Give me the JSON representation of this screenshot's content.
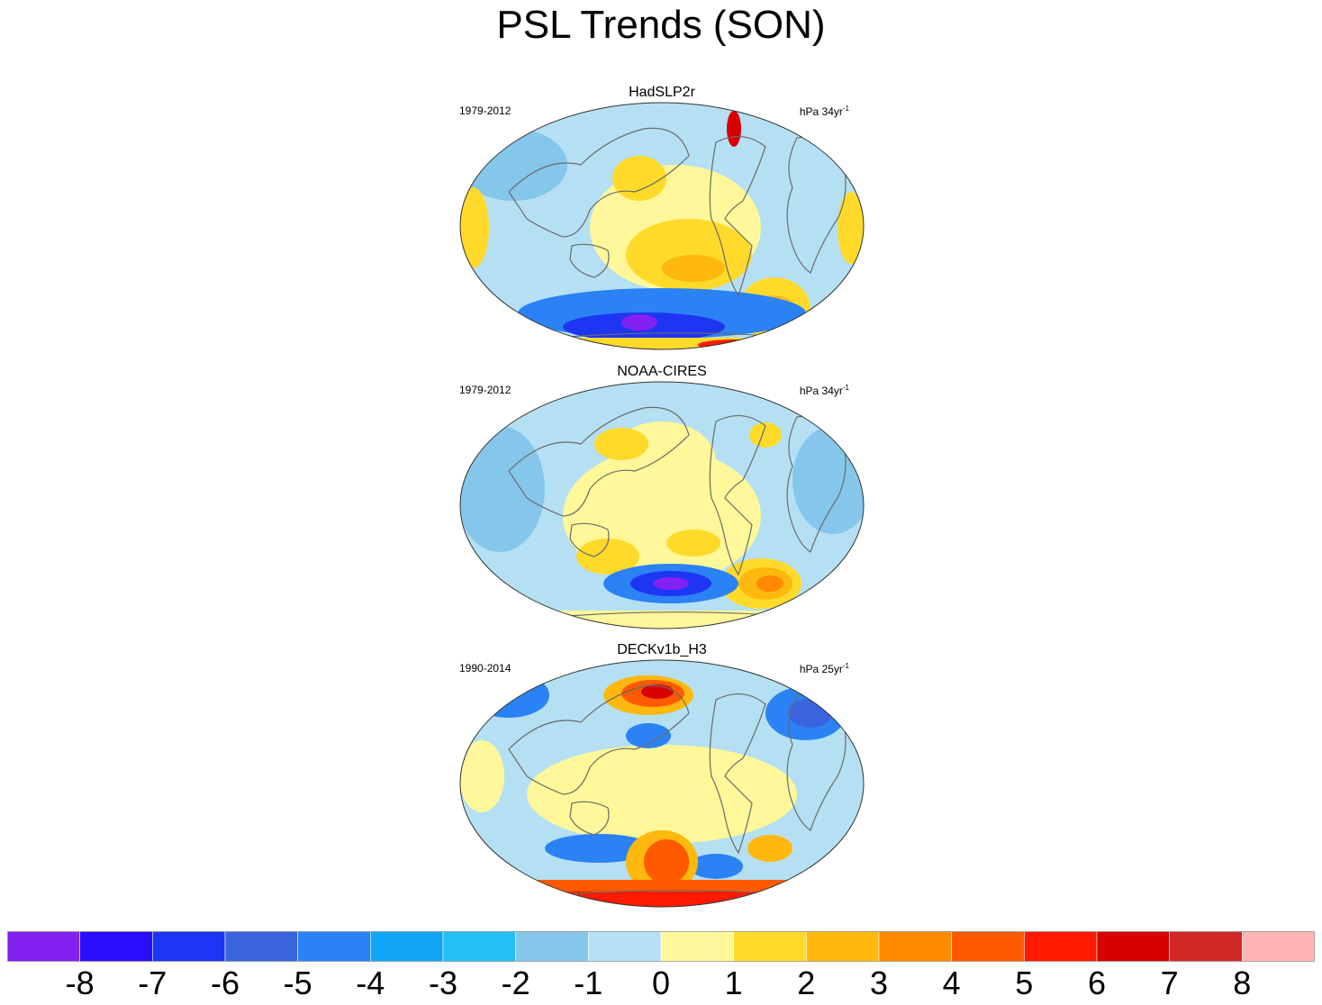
{
  "title": "PSL Trends (SON)",
  "panels": [
    {
      "name": "HadSLP2r",
      "years": "1979-2012",
      "units": "hPa 34yr",
      "units_exp": "-1"
    },
    {
      "name": "NOAA-CIRES",
      "years": "1979-2012",
      "units": "hPa 34yr",
      "units_exp": "-1"
    },
    {
      "name": "DECKv1b_H3",
      "years": "1990-2014",
      "units": "hPa 25yr",
      "units_exp": "-1"
    }
  ],
  "colorbar": {
    "colors": [
      "#8221f2",
      "#2a0dfc",
      "#1e35f3",
      "#3964dd",
      "#2b82f4",
      "#11a6f7",
      "#24c0f5",
      "#84c7eb",
      "#b5e0f3",
      "#fff799",
      "#ffda2a",
      "#ffb80d",
      "#ff8a00",
      "#ff5a00",
      "#ff1a00",
      "#d90000",
      "#d12828",
      "#ffb3b3"
    ],
    "tick_labels": [
      "-8",
      "-7",
      "-6",
      "-5",
      "-4",
      "-3",
      "-2",
      "-1",
      "0",
      "1",
      "2",
      "3",
      "4",
      "5",
      "6",
      "7",
      "8"
    ]
  },
  "map_palette": {
    "ocean_base": "#b5e0f3",
    "light_blue": "#84c7eb",
    "yellow": "#fff799",
    "gold": "#ffda2a",
    "orange": "#ffb80d",
    "dark_orange": "#ff8a00",
    "red": "#ff1a00",
    "blue": "#2b82f4",
    "deep_blue": "#2a0dfc",
    "coast": "#6b6b6b"
  }
}
